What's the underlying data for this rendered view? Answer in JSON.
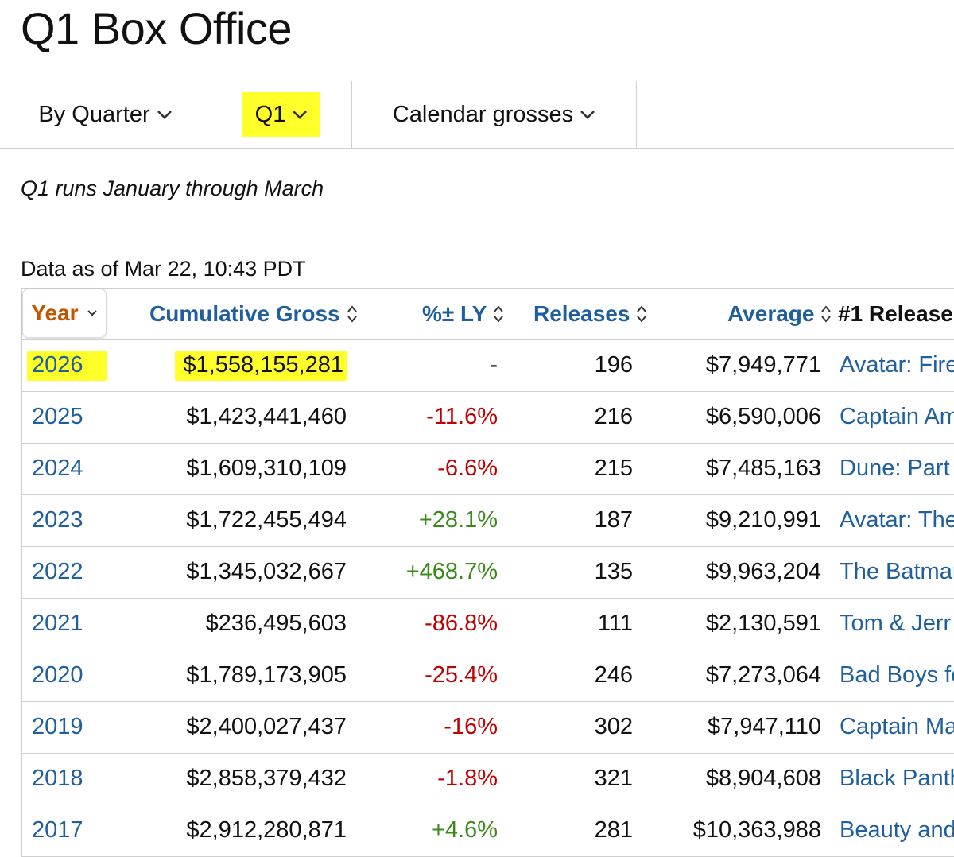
{
  "page": {
    "title": "Q1 Box Office"
  },
  "filters": {
    "period_type": "By Quarter",
    "quarter": "Q1",
    "gross_type": "Calendar grosses"
  },
  "note": "Q1 runs January through March",
  "as_of": "Data as of Mar 22, 10:43 PDT",
  "colors": {
    "link": "#1f5f9e",
    "active_sort": "#c45500",
    "negative": "#c00000",
    "positive": "#3a8a1a",
    "highlight": "#ffff2a"
  },
  "table": {
    "headers": {
      "year": "Year",
      "cumulative_gross": "Cumulative Gross",
      "pct_ly": "%± LY",
      "releases": "Releases",
      "average": "Average",
      "release_1": "#1 Release"
    },
    "rows": [
      {
        "year": "2026",
        "gross": "$1,558,155,281",
        "pct": "-",
        "pct_dir": "none",
        "releases": "196",
        "average": "$7,949,771",
        "release": "Avatar: Fire"
      },
      {
        "year": "2025",
        "gross": "$1,423,441,460",
        "pct": "-11.6%",
        "pct_dir": "neg",
        "releases": "216",
        "average": "$6,590,006",
        "release": "Captain Am"
      },
      {
        "year": "2024",
        "gross": "$1,609,310,109",
        "pct": "-6.6%",
        "pct_dir": "neg",
        "releases": "215",
        "average": "$7,485,163",
        "release": "Dune: Part"
      },
      {
        "year": "2023",
        "gross": "$1,722,455,494",
        "pct": "+28.1%",
        "pct_dir": "pos",
        "releases": "187",
        "average": "$9,210,991",
        "release": "Avatar: The"
      },
      {
        "year": "2022",
        "gross": "$1,345,032,667",
        "pct": "+468.7%",
        "pct_dir": "pos",
        "releases": "135",
        "average": "$9,963,204",
        "release": "The Batman"
      },
      {
        "year": "2021",
        "gross": "$236,495,603",
        "pct": "-86.8%",
        "pct_dir": "neg",
        "releases": "111",
        "average": "$2,130,591",
        "release": "Tom & Jerr"
      },
      {
        "year": "2020",
        "gross": "$1,789,173,905",
        "pct": "-25.4%",
        "pct_dir": "neg",
        "releases": "246",
        "average": "$7,273,064",
        "release": "Bad Boys fo"
      },
      {
        "year": "2019",
        "gross": "$2,400,027,437",
        "pct": "-16%",
        "pct_dir": "neg",
        "releases": "302",
        "average": "$7,947,110",
        "release": "Captain Ma"
      },
      {
        "year": "2018",
        "gross": "$2,858,379,432",
        "pct": "-1.8%",
        "pct_dir": "neg",
        "releases": "321",
        "average": "$8,904,608",
        "release": "Black Panth"
      },
      {
        "year": "2017",
        "gross": "$2,912,280,871",
        "pct": "+4.6%",
        "pct_dir": "pos",
        "releases": "281",
        "average": "$10,363,988",
        "release": "Beauty and"
      }
    ]
  }
}
